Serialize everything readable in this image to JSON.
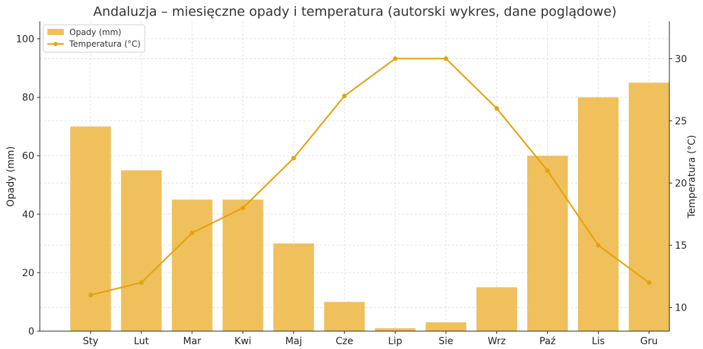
{
  "chart_data": {
    "type": "bar",
    "title": "Andaluzja – miesięczne opady i temperatura (autorski wykres, dane poglądowe)",
    "categories": [
      "Sty",
      "Lut",
      "Mar",
      "Kwi",
      "Maj",
      "Cze",
      "Lip",
      "Sie",
      "Wrz",
      "Paź",
      "Lis",
      "Gru"
    ],
    "series": [
      {
        "name": "Opady (mm)",
        "type": "bar",
        "axis": "left",
        "color": "#EDB94A",
        "values": [
          70,
          55,
          45,
          45,
          30,
          10,
          1,
          3,
          15,
          60,
          80,
          85
        ]
      },
      {
        "name": "Temperatura (°C)",
        "type": "line",
        "axis": "right",
        "color": "#E3A20D",
        "values": [
          11,
          12,
          16,
          18,
          22,
          27,
          30,
          30,
          26,
          21,
          15,
          12
        ]
      }
    ],
    "ylabel": "Opady (mm)",
    "y2label": "Temperatura (°C)",
    "ylim": [
      0,
      106
    ],
    "y2lim": [
      8.1,
      33
    ],
    "yticks": [
      "0",
      "20",
      "40",
      "60",
      "80",
      "100"
    ],
    "y2ticks": [
      "10",
      "15",
      "20",
      "25",
      "30"
    ],
    "grid": true,
    "legend": "top-left"
  }
}
